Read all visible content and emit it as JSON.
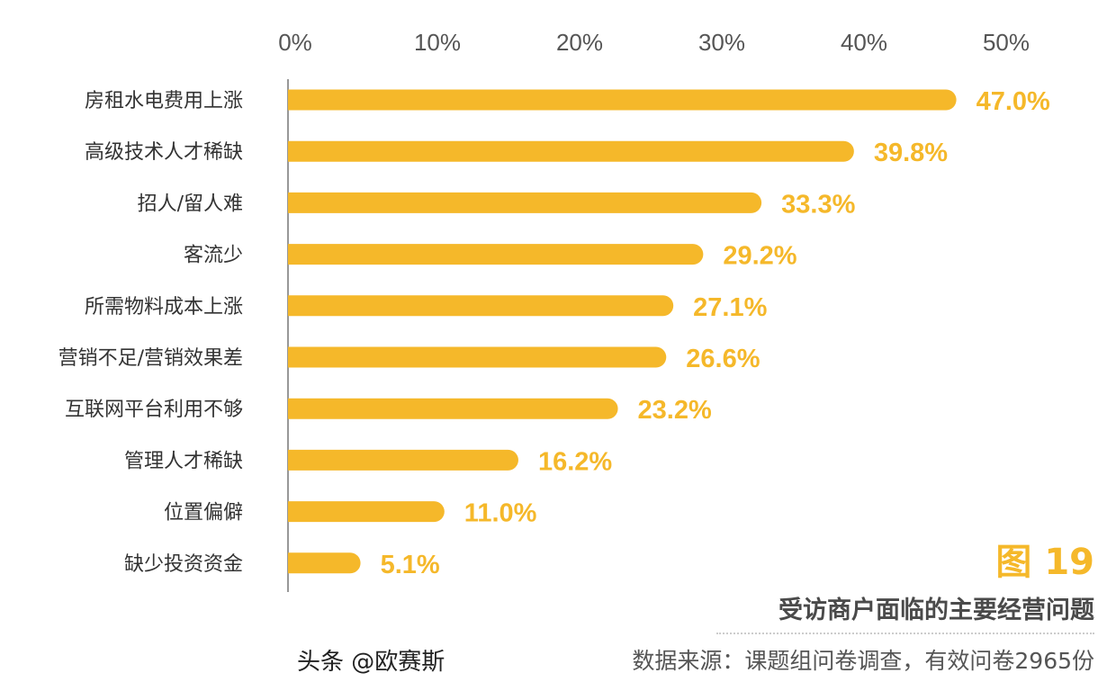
{
  "chart_data": {
    "type": "bar",
    "orientation": "horizontal",
    "categories": [
      "房租水电费用上涨",
      "高级技术人才稀缺",
      "招人/留人难",
      "客流少",
      "所需物料成本上涨",
      "营销不足/营销效果差",
      "互联网平台利用不够",
      "管理人才稀缺",
      "位置偏僻",
      "缺少投资资金"
    ],
    "values": [
      47.0,
      39.8,
      33.3,
      29.2,
      27.1,
      26.6,
      23.2,
      16.2,
      11.0,
      5.1
    ],
    "data_labels": [
      "47.0%",
      "39.8%",
      "33.3%",
      "29.2%",
      "27.1%",
      "26.6%",
      "23.2%",
      "16.2%",
      "11.0%",
      "5.1%"
    ],
    "x_ticks": [
      "0%",
      "10%",
      "20%",
      "30%",
      "40%",
      "50%"
    ],
    "xlim": [
      0,
      50
    ],
    "x_axis_position": "top",
    "grid": false,
    "bar_color": "#F5B82A",
    "label_color": "#F5B82A"
  },
  "figure_number": "图 19",
  "title": "受访商户面临的主要经营问题",
  "source": "数据来源：课题组问卷调查，有效问卷2965份",
  "watermark": "头条 @欧赛斯"
}
